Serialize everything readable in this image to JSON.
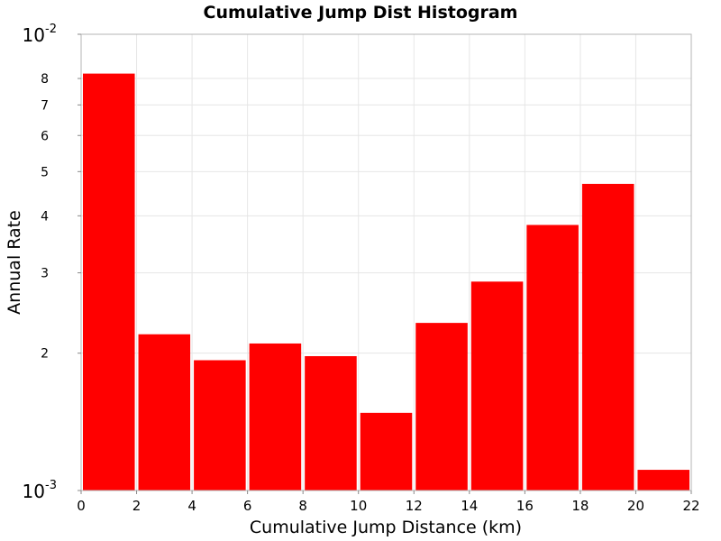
{
  "chart_data": {
    "type": "bar",
    "title": "Cumulative Jump Dist Histogram",
    "xlabel": "Cumulative Jump Distance (km)",
    "ylabel": "Annual Rate",
    "y_scale": "log",
    "xlim": [
      0,
      22
    ],
    "ylim": [
      0.001,
      0.01
    ],
    "grid": true,
    "bar_color": "#ff0000",
    "x_ticks": [
      0,
      2,
      4,
      6,
      8,
      10,
      12,
      14,
      16,
      18,
      20,
      22
    ],
    "y_minor_ticks": [
      {
        "value": 0.002,
        "label": "2"
      },
      {
        "value": 0.003,
        "label": "3"
      },
      {
        "value": 0.004,
        "label": "4"
      },
      {
        "value": 0.005,
        "label": "5"
      },
      {
        "value": 0.006,
        "label": "6"
      },
      {
        "value": 0.007,
        "label": "7"
      },
      {
        "value": 0.008,
        "label": "8"
      }
    ],
    "y_major_ticks": [
      {
        "value": 0.001,
        "base": "10",
        "exponent": "-3"
      },
      {
        "value": 0.01,
        "base": "10",
        "exponent": "-2"
      }
    ],
    "bins": [
      {
        "x0": 0,
        "x1": 2,
        "value": 0.0082
      },
      {
        "x0": 2,
        "x1": 4,
        "value": 0.0022
      },
      {
        "x0": 4,
        "x1": 6,
        "value": 0.00193
      },
      {
        "x0": 6,
        "x1": 8,
        "value": 0.0021
      },
      {
        "x0": 8,
        "x1": 10,
        "value": 0.00197
      },
      {
        "x0": 10,
        "x1": 12,
        "value": 0.00148
      },
      {
        "x0": 12,
        "x1": 14,
        "value": 0.00233
      },
      {
        "x0": 14,
        "x1": 16,
        "value": 0.00287
      },
      {
        "x0": 16,
        "x1": 18,
        "value": 0.00382
      },
      {
        "x0": 18,
        "x1": 20,
        "value": 0.0047
      },
      {
        "x0": 20,
        "x1": 22,
        "value": 0.00111
      }
    ]
  }
}
